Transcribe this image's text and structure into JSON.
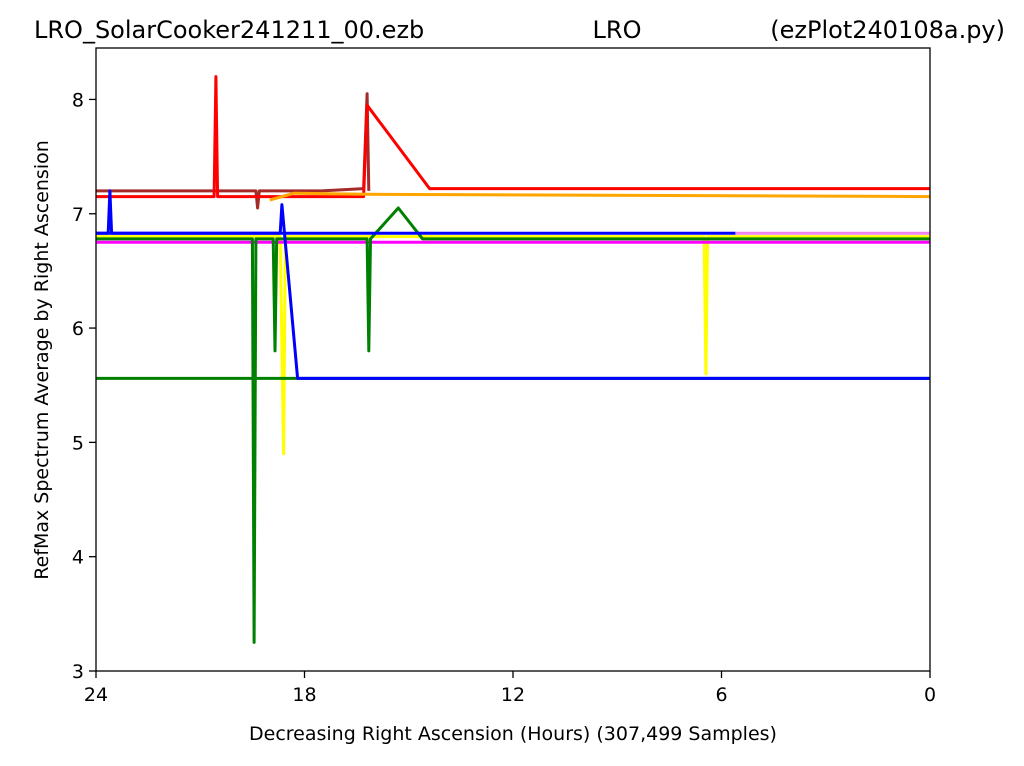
{
  "chart_data": {
    "type": "line",
    "title_left": "LRO_SolarCooker241211_00.ezb",
    "title_center": "LRO",
    "title_right": "(ezPlot240108a.py)",
    "xlabel": "Decreasing Right Ascension (Hours) (307,499 Samples)",
    "ylabel": "RefMax Spectrum Average by Right Ascension",
    "xlim": [
      24,
      0
    ],
    "ylim": [
      3,
      8.45
    ],
    "x_ticks": [
      24,
      18,
      12,
      6,
      0
    ],
    "x_tick_labels": [
      "24",
      "18",
      "12",
      "6",
      "0"
    ],
    "y_ticks": [
      3,
      4,
      5,
      6,
      7,
      8
    ],
    "y_tick_labels": [
      "3",
      "4",
      "5",
      "6",
      "7",
      "8"
    ],
    "grid": false,
    "legend": "none",
    "series": [
      {
        "color": "#a52a2a",
        "points": [
          [
            24,
            7.2
          ],
          [
            19.4,
            7.2
          ],
          [
            19.35,
            7.05
          ],
          [
            19.3,
            7.2
          ],
          [
            17.5,
            7.2
          ],
          [
            16.3,
            7.22
          ],
          [
            16.2,
            8.05
          ],
          [
            16.15,
            7.2
          ]
        ]
      },
      {
        "color": "#ff0000",
        "points": [
          [
            24,
            7.15
          ],
          [
            20.6,
            7.15
          ],
          [
            20.55,
            8.2
          ],
          [
            20.5,
            7.15
          ],
          [
            16.3,
            7.15
          ],
          [
            16.2,
            7.95
          ],
          [
            14.4,
            7.22
          ],
          [
            0,
            7.22
          ]
        ]
      },
      {
        "color": "#ffa500",
        "points": [
          [
            19,
            7.12
          ],
          [
            18.3,
            7.18
          ],
          [
            16.2,
            7.17
          ],
          [
            0,
            7.15
          ]
        ]
      },
      {
        "color": "#ffff00",
        "points": [
          [
            24,
            6.8
          ],
          [
            18.7,
            6.8
          ],
          [
            18.6,
            4.9
          ],
          [
            18.55,
            6.8
          ],
          [
            6.5,
            6.8
          ],
          [
            6.45,
            5.6
          ],
          [
            6.4,
            6.8
          ],
          [
            0,
            6.8
          ]
        ]
      },
      {
        "color": "#ff00ff",
        "points": [
          [
            24,
            6.75
          ],
          [
            0,
            6.75
          ]
        ]
      },
      {
        "color": "#008000",
        "points": [
          [
            24,
            6.78
          ],
          [
            19.5,
            6.78
          ],
          [
            19.45,
            3.25
          ],
          [
            19.4,
            6.78
          ],
          [
            18.9,
            6.78
          ],
          [
            18.85,
            5.8
          ],
          [
            18.8,
            6.78
          ],
          [
            16.2,
            6.78
          ],
          [
            16.15,
            5.8
          ],
          [
            16.1,
            6.78
          ],
          [
            15.3,
            7.05
          ],
          [
            14.6,
            6.78
          ],
          [
            0,
            6.78
          ]
        ]
      },
      {
        "color": "#008000",
        "points": [
          [
            24,
            5.56
          ],
          [
            19.5,
            5.56
          ],
          [
            18.2,
            5.56
          ],
          [
            0,
            5.56
          ]
        ]
      },
      {
        "color": "#0000ff",
        "points": [
          [
            24,
            6.83
          ],
          [
            23.65,
            6.83
          ],
          [
            23.6,
            7.2
          ],
          [
            23.55,
            6.83
          ],
          [
            18.7,
            6.83
          ],
          [
            18.65,
            7.08
          ],
          [
            18.2,
            5.56
          ],
          [
            0,
            5.56
          ]
        ]
      },
      {
        "color": "#0000ff",
        "points": [
          [
            24,
            6.83
          ],
          [
            5.6,
            6.83
          ]
        ]
      },
      {
        "color": "#ee82ee",
        "points": [
          [
            5.6,
            6.83
          ],
          [
            0,
            6.83
          ]
        ]
      }
    ]
  }
}
